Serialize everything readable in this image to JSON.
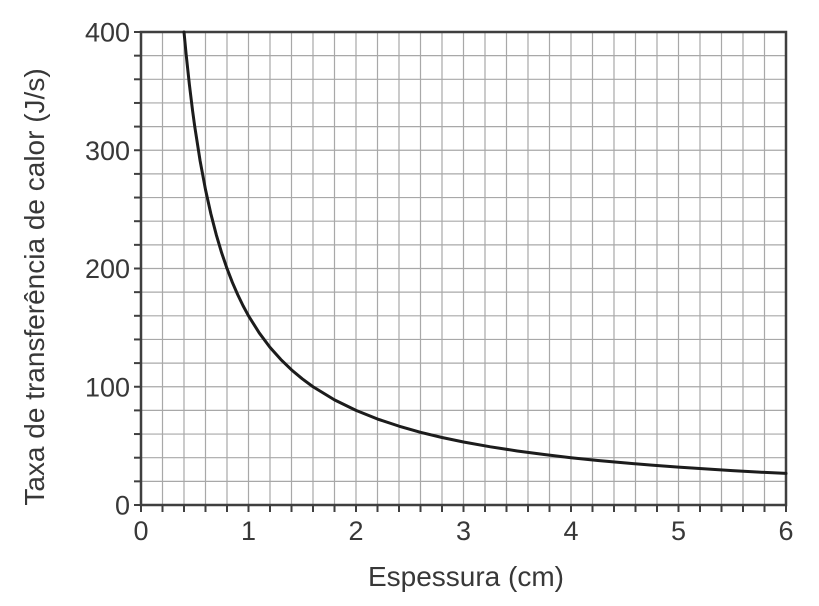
{
  "figure": {
    "background_color": "#ffffff",
    "text_color": "#383838",
    "grid_color": "#a8a8a8",
    "border_color": "#3f3f3f",
    "curve_color": "#1c1c1c"
  },
  "chart_data": {
    "type": "line",
    "title": "",
    "xlabel": "Espessura (cm)",
    "ylabel": "Taxa de transferência de calor (J/s)",
    "xlim": [
      0,
      6
    ],
    "ylim": [
      0,
      400
    ],
    "x_ticks": [
      0,
      1,
      2,
      3,
      4,
      5,
      6
    ],
    "y_ticks": [
      0,
      100,
      200,
      300,
      400
    ],
    "x_minor_step": 0.2,
    "y_minor_step": 20,
    "grid": "minor gridlines on, full box border, outward ticks at each minor step",
    "legend": "none",
    "relation": "y ≈ 160 / x  (inverse proportionality, curve clipped at y = 400)",
    "series": [
      {
        "name": "Taxa de transferência de calor",
        "x": [
          0.4,
          0.42,
          0.45,
          0.48,
          0.5,
          0.55,
          0.6,
          0.65,
          0.7,
          0.75,
          0.8,
          0.85,
          0.9,
          0.95,
          1.0,
          1.1,
          1.2,
          1.3,
          1.4,
          1.5,
          1.6,
          1.8,
          2.0,
          2.2,
          2.4,
          2.6,
          2.8,
          3.0,
          3.25,
          3.5,
          3.75,
          4.0,
          4.25,
          4.5,
          4.75,
          5.0,
          5.25,
          5.5,
          5.75,
          6.0
        ],
        "y": [
          400,
          381.0,
          355.6,
          333.3,
          320.0,
          290.9,
          266.7,
          246.2,
          228.6,
          213.3,
          200.0,
          188.2,
          177.8,
          168.4,
          160.0,
          145.5,
          133.3,
          123.1,
          114.3,
          106.7,
          100.0,
          88.9,
          80.0,
          72.7,
          66.7,
          61.5,
          57.1,
          53.3,
          49.2,
          45.7,
          42.7,
          40.0,
          37.6,
          35.6,
          33.7,
          32.0,
          30.5,
          29.1,
          27.8,
          26.7
        ]
      }
    ]
  }
}
